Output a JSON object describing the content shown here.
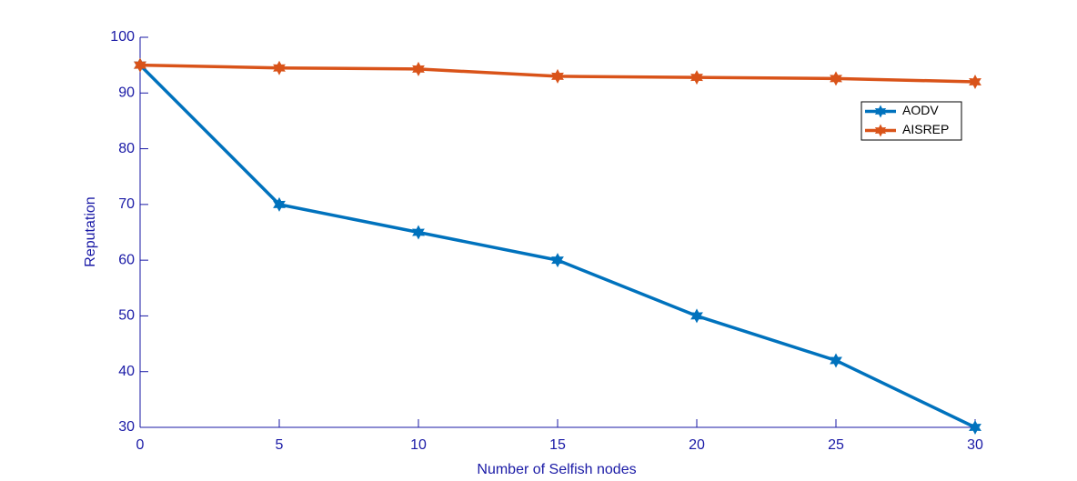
{
  "chart_data": {
    "type": "line",
    "x_label": "Number of Selfish nodes",
    "y_label": "Reputation",
    "x": [
      0,
      5,
      10,
      15,
      20,
      25,
      30
    ],
    "series": [
      {
        "name": "AODV",
        "color": "#0072bd",
        "values": [
          95,
          70,
          65,
          60,
          50,
          42,
          30
        ]
      },
      {
        "name": "AISREP",
        "color": "#d95319",
        "values": [
          95,
          94.5,
          94.3,
          93,
          92.8,
          92.6,
          92
        ]
      }
    ],
    "xlim": [
      0,
      30
    ],
    "xticks": [
      0,
      5,
      10,
      15,
      20,
      25,
      30
    ],
    "ylim": [
      30,
      100
    ],
    "yticks": [
      30,
      40,
      50,
      60,
      70,
      80,
      90,
      100
    ],
    "grid": false,
    "legend_position": "northeast",
    "axis_color": "#1a1aa6"
  }
}
